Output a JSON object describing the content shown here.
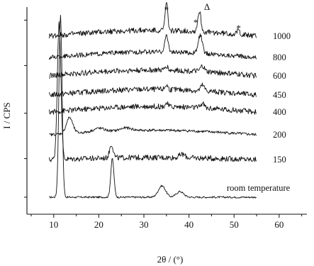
{
  "chart_data": {
    "type": "line",
    "title": "",
    "xlabel": "2θ / (°)",
    "ylabel": "I / CPS",
    "xlim": [
      5,
      66
    ],
    "x_ticks": [
      "10",
      "20",
      "30",
      "40",
      "50",
      "60"
    ],
    "grid": false,
    "legend": "none",
    "series": [
      {
        "name": "room temperature",
        "baseline": 0.05,
        "peaks": [
          [
            11.5,
            0.8,
            0.35
          ],
          [
            23.0,
            0.17,
            0.35
          ],
          [
            34.0,
            0.05,
            0.8
          ],
          [
            38.0,
            0.025,
            0.8
          ]
        ],
        "noise": 0.004,
        "wave": 0
      },
      {
        "name": "150",
        "baseline": 0.215,
        "peaks": [
          [
            11.2,
            0.6,
            0.4
          ],
          [
            22.8,
            0.06,
            0.4
          ],
          [
            38.5,
            0.015,
            0.6
          ]
        ],
        "noise": 0.012,
        "wave": 0.01
      },
      {
        "name": "200",
        "baseline": 0.325,
        "peaks": [
          [
            13.5,
            0.07,
            0.7
          ],
          [
            20.0,
            0.015,
            1.2
          ],
          [
            26.0,
            0.012,
            1.2
          ]
        ],
        "noise": 0.006,
        "wave": 0.02
      },
      {
        "name": "400",
        "baseline": 0.425,
        "peaks": [
          [
            35.0,
            0.015,
            0.3
          ],
          [
            43.0,
            0.02,
            0.4
          ]
        ],
        "noise": 0.012,
        "wave": 0.025
      },
      {
        "name": "450",
        "baseline": 0.5,
        "peaks": [
          [
            35.0,
            0.02,
            0.3
          ],
          [
            43.0,
            0.025,
            0.4
          ]
        ],
        "noise": 0.012,
        "wave": 0.025
      },
      {
        "name": "600",
        "baseline": 0.585,
        "peaks": [
          [
            35.0,
            0.02,
            0.3
          ],
          [
            43.0,
            0.025,
            0.4
          ]
        ],
        "noise": 0.012,
        "wave": 0.025
      },
      {
        "name": "800",
        "baseline": 0.665,
        "peaks": [
          [
            35.0,
            0.07,
            0.4
          ],
          [
            42.5,
            0.08,
            0.45
          ]
        ],
        "noise": 0.01,
        "wave": 0.025
      },
      {
        "name": "1000",
        "baseline": 0.76,
        "peaks": [
          [
            35.0,
            0.12,
            0.3
          ],
          [
            42.3,
            0.09,
            0.35
          ],
          [
            51.0,
            0.02,
            0.3
          ]
        ],
        "noise": 0.012,
        "wave": 0.025
      }
    ],
    "annotations": [
      {
        "text": "*",
        "x": 35.0
      },
      {
        "text": "*",
        "x": 41.5
      },
      {
        "text": "Δ",
        "x": 44.0
      },
      {
        "text": "*",
        "x": 51.0
      }
    ]
  }
}
